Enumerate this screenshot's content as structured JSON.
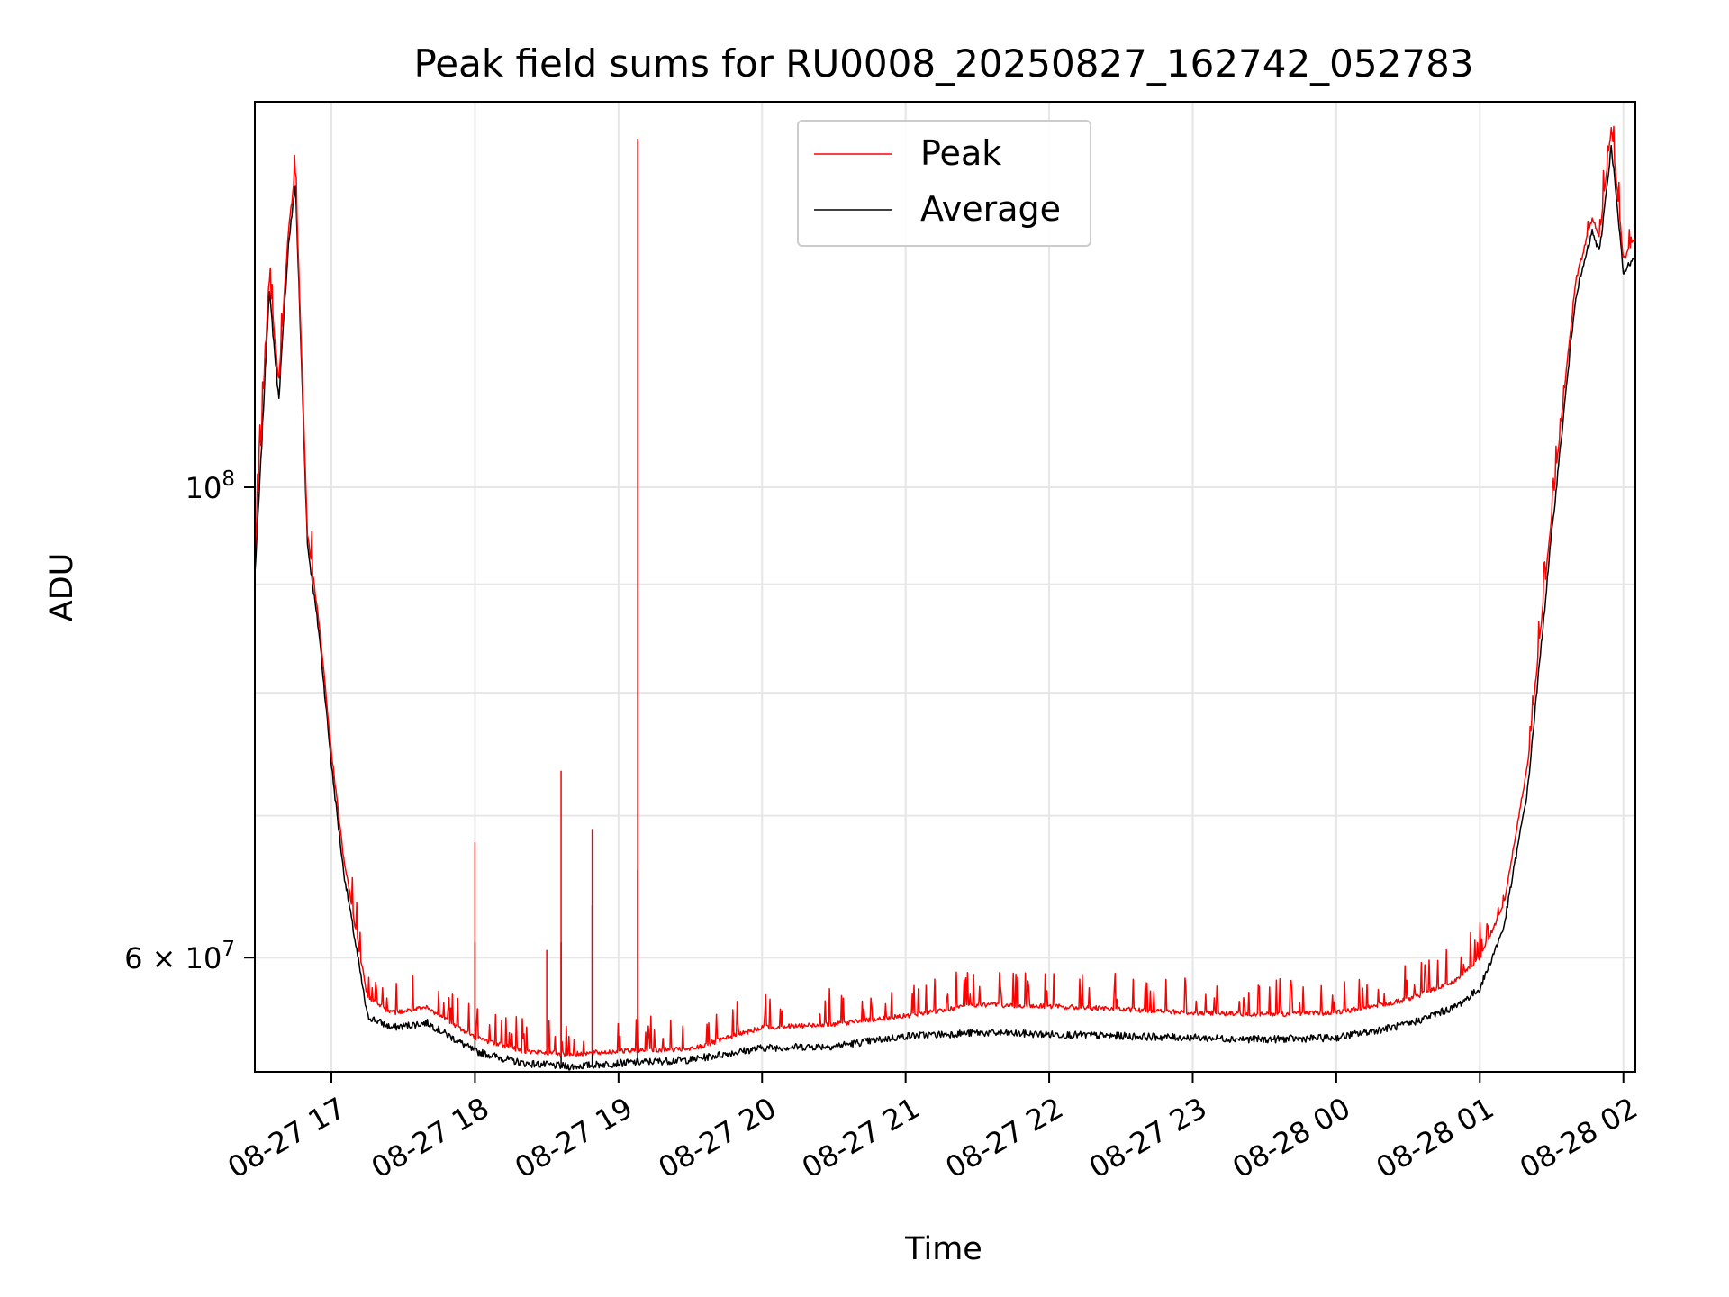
{
  "chart_data": {
    "type": "line",
    "title": "Peak field sums for RU0008_20250827_162742_052783",
    "xlabel": "Time",
    "ylabel": "ADU",
    "yscale": "log",
    "ylim": [
      53000000,
      152000000
    ],
    "xlim": [
      "2025-08-27 16:28",
      "2025-08-28 02:05"
    ],
    "grid": true,
    "legend_position": "upper center",
    "colors": {
      "Peak": "#ff0000",
      "Average": "#000000"
    },
    "x_ticks": [
      "08-27 17",
      "08-27 18",
      "08-27 19",
      "08-27 20",
      "08-27 21",
      "08-27 22",
      "08-27 23",
      "08-28 00",
      "08-28 01",
      "08-28 02"
    ],
    "y_ticks": [
      {
        "value": 100000000,
        "base": "10",
        "exp": "8",
        "mant": ""
      },
      {
        "value": 60000000,
        "base": "10",
        "exp": "7",
        "mant": "6"
      }
    ],
    "x": [
      "2025-08-27 16:28",
      "2025-08-27 16:30",
      "2025-08-27 16:34",
      "2025-08-27 16:38",
      "2025-08-27 16:42",
      "2025-08-27 16:45",
      "2025-08-27 16:50",
      "2025-08-27 16:55",
      "2025-08-27 17:00",
      "2025-08-27 17:05",
      "2025-08-27 17:10",
      "2025-08-27 17:15",
      "2025-08-27 17:25",
      "2025-08-27 17:40",
      "2025-08-27 18:00",
      "2025-08-27 18:20",
      "2025-08-27 18:40",
      "2025-08-27 19:00",
      "2025-08-27 19:30",
      "2025-08-27 20:00",
      "2025-08-27 20:30",
      "2025-08-27 21:00",
      "2025-08-27 21:30",
      "2025-08-27 22:00",
      "2025-08-27 22:30",
      "2025-08-27 23:00",
      "2025-08-27 23:30",
      "2025-08-28 00:00",
      "2025-08-28 00:30",
      "2025-08-28 00:50",
      "2025-08-28 01:00",
      "2025-08-28 01:10",
      "2025-08-28 01:20",
      "2025-08-28 01:30",
      "2025-08-28 01:40",
      "2025-08-28 01:47",
      "2025-08-28 01:50",
      "2025-08-28 01:55",
      "2025-08-28 02:00",
      "2025-08-28 02:05"
    ],
    "series": [
      {
        "name": "Peak",
        "values": [
          93000000,
          102000000,
          126000000,
          112000000,
          132000000,
          141000000,
          95000000,
          86000000,
          75000000,
          67000000,
          62000000,
          57500000,
          56500000,
          56800000,
          55000000,
          54200000,
          54000000,
          54200000,
          54300000,
          55600000,
          55800000,
          56300000,
          57000000,
          56900000,
          56700000,
          56500000,
          56400000,
          56500000,
          57300000,
          58500000,
          60000000,
          63500000,
          74000000,
          97000000,
          125000000,
          134000000,
          131000000,
          148000000,
          128000000,
          131000000
        ],
        "spikes": [
          {
            "x": "2025-08-27 18:00",
            "value": 68000000
          },
          {
            "x": "2025-08-27 18:30",
            "value": 60500000
          },
          {
            "x": "2025-08-27 18:36",
            "value": 73500000
          },
          {
            "x": "2025-08-27 18:49",
            "value": 69000000
          },
          {
            "x": "2025-08-27 19:08",
            "value": 146000000
          }
        ]
      },
      {
        "name": "Average",
        "values": [
          91000000,
          100000000,
          124000000,
          110000000,
          130000000,
          139000000,
          94000000,
          85000000,
          74000000,
          66000000,
          61000000,
          56300000,
          55600000,
          55900000,
          54200000,
          53500000,
          53300000,
          53500000,
          53700000,
          54400000,
          54500000,
          55100000,
          55300000,
          55200000,
          55100000,
          55000000,
          54900000,
          55000000,
          55800000,
          56900000,
          58000000,
          62000000,
          72000000,
          95000000,
          123000000,
          132000000,
          129000000,
          145000000,
          126000000,
          129000000
        ],
        "spikes": [
          {
            "x": "2025-08-27 18:00",
            "value": 61000000
          },
          {
            "x": "2025-08-27 18:36",
            "value": 61000000
          },
          {
            "x": "2025-08-27 18:49",
            "value": 63500000
          },
          {
            "x": "2025-08-27 19:08",
            "value": 66000000
          }
        ]
      }
    ]
  }
}
